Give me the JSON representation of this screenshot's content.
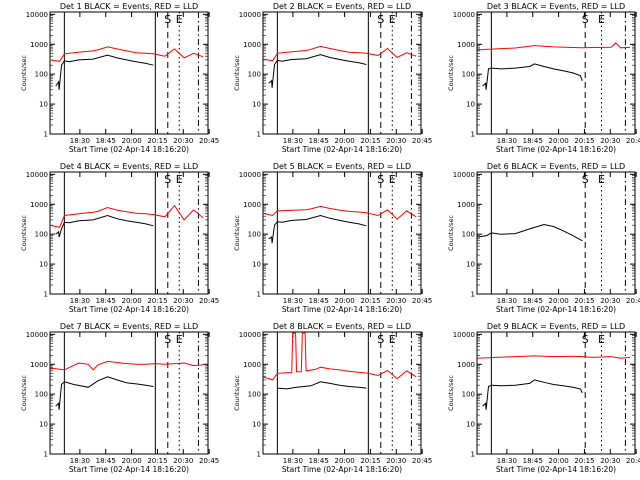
{
  "figure": {
    "time_unit": "minutes after 18:16:20"
  },
  "chart_data": [
    {
      "type": "line",
      "title": "Det 1 BLACK = Events, RED = LLD",
      "xlabel": "Start Time (02-Apr-14 18:16:20)",
      "ylabel": "Counts/sec",
      "yscale": "log",
      "ylim": [
        1,
        12000
      ],
      "xlim": [
        0,
        165
      ],
      "x_ticks": [
        "18:30",
        "18:45",
        "20:00",
        "20:15",
        "20:30",
        "20:45"
      ],
      "y_ticks": [
        "1",
        "10",
        "100",
        "1000",
        "10000"
      ],
      "series": [
        {
          "color": "#000000",
          "x": [
            6,
            9,
            9.5,
            12,
            15,
            20,
            30,
            45,
            60,
            70,
            80,
            90,
            100,
            108
          ],
          "y": [
            40,
            55,
            30,
            200,
            280,
            260,
            300,
            320,
            430,
            350,
            300,
            260,
            230,
            200
          ]
        },
        {
          "color": "#ff0000",
          "x": [
            0,
            10,
            15,
            25,
            35,
            45,
            50,
            60,
            70,
            80,
            90,
            100,
            108,
            120,
            130,
            140,
            150,
            160
          ],
          "y": [
            300,
            270,
            480,
            520,
            560,
            600,
            650,
            820,
            700,
            600,
            520,
            500,
            480,
            400,
            700,
            350,
            500,
            380
          ]
        }
      ],
      "markers": [
        {
          "x": 15,
          "style": "solid",
          "label": ""
        },
        {
          "x": 110,
          "style": "solid",
          "label": ""
        },
        {
          "x": 123,
          "style": "dashed",
          "label": "S"
        },
        {
          "x": 135,
          "style": "dotted",
          "label": "E"
        },
        {
          "x": 155,
          "style": "dashdot",
          "label": ""
        }
      ]
    },
    {
      "type": "line",
      "title": "Det 2 BLACK = Events, RED = LLD",
      "xlabel": "Start Time (02-Apr-14 18:16:20)",
      "ylabel": "Counts/sec",
      "yscale": "log",
      "ylim": [
        1,
        12000
      ],
      "xlim": [
        0,
        165
      ],
      "x_ticks": [
        "18:30",
        "18:45",
        "20:00",
        "20:15",
        "20:30",
        "20:45"
      ],
      "y_ticks": [
        "1",
        "10",
        "100",
        "1000",
        "10000"
      ],
      "series": [
        {
          "color": "#000000",
          "x": [
            6,
            9,
            9.5,
            12,
            15,
            20,
            30,
            45,
            60,
            70,
            80,
            90,
            100,
            108
          ],
          "y": [
            50,
            60,
            35,
            210,
            290,
            270,
            310,
            330,
            450,
            360,
            310,
            270,
            240,
            210
          ]
        },
        {
          "color": "#ff0000",
          "x": [
            0,
            10,
            15,
            25,
            35,
            45,
            50,
            60,
            70,
            80,
            90,
            100,
            108,
            120,
            130,
            140,
            150,
            160
          ],
          "y": [
            320,
            280,
            500,
            540,
            580,
            620,
            680,
            850,
            720,
            620,
            540,
            520,
            500,
            420,
            720,
            360,
            520,
            400
          ]
        }
      ],
      "markers": [
        {
          "x": 15,
          "style": "solid",
          "label": ""
        },
        {
          "x": 110,
          "style": "solid",
          "label": ""
        },
        {
          "x": 123,
          "style": "dashed",
          "label": "S"
        },
        {
          "x": 135,
          "style": "dotted",
          "label": "E"
        },
        {
          "x": 155,
          "style": "dashdot",
          "label": ""
        }
      ]
    },
    {
      "type": "line",
      "title": "Det 3 BLACK = Events, RED = LLD",
      "xlabel": "Start Time (02-Apr-14 18:16:20)",
      "ylabel": "Counts/sec",
      "yscale": "log",
      "ylim": [
        1,
        12000
      ],
      "xlim": [
        0,
        165
      ],
      "x_ticks": [
        "18:30",
        "18:45",
        "20:00",
        "20:15",
        "20:30",
        "20:45"
      ],
      "y_ticks": [
        "1",
        "10",
        "100",
        "1000",
        "10000"
      ],
      "series": [
        {
          "color": "#000000",
          "x": [
            6,
            9,
            9.5,
            12,
            15,
            25,
            40,
            55,
            60,
            70,
            80,
            90,
            100,
            108,
            110
          ],
          "y": [
            40,
            50,
            30,
            150,
            160,
            150,
            160,
            180,
            220,
            180,
            150,
            130,
            110,
            90,
            60
          ]
        },
        {
          "color": "#ff0000",
          "x": [
            0,
            20,
            40,
            60,
            80,
            100,
            110,
            120,
            140,
            145,
            150,
            160
          ],
          "y": [
            650,
            700,
            750,
            900,
            820,
            780,
            760,
            780,
            800,
            1100,
            760,
            800
          ]
        }
      ],
      "markers": [
        {
          "x": 15,
          "style": "solid",
          "label": ""
        },
        {
          "x": 113,
          "style": "dashed",
          "label": "S"
        },
        {
          "x": 130,
          "style": "dotted",
          "label": "E"
        },
        {
          "x": 155,
          "style": "dashdot",
          "label": ""
        }
      ]
    },
    {
      "type": "line",
      "title": "Det 4 BLACK = Events, RED = LLD",
      "xlabel": "Start Time (02-Apr-14 18:16:20)",
      "ylabel": "Counts/sec",
      "yscale": "log",
      "ylim": [
        1,
        12000
      ],
      "xlim": [
        0,
        165
      ],
      "x_ticks": [
        "18:30",
        "18:45",
        "20:00",
        "20:15",
        "20:30",
        "20:45"
      ],
      "y_ticks": [
        "1",
        "10",
        "100",
        "1000",
        "10000"
      ],
      "series": [
        {
          "color": "#000000",
          "x": [
            6,
            9,
            9.5,
            12,
            15,
            20,
            30,
            45,
            60,
            70,
            80,
            90,
            100,
            108
          ],
          "y": [
            100,
            120,
            80,
            150,
            250,
            240,
            280,
            300,
            420,
            330,
            280,
            250,
            220,
            190
          ]
        },
        {
          "color": "#ff0000",
          "x": [
            0,
            10,
            15,
            25,
            35,
            45,
            50,
            60,
            70,
            80,
            90,
            100,
            108,
            120,
            130,
            140,
            150,
            160
          ],
          "y": [
            200,
            170,
            420,
            460,
            500,
            540,
            580,
            780,
            640,
            560,
            500,
            480,
            450,
            380,
            900,
            300,
            650,
            350
          ]
        }
      ],
      "markers": [
        {
          "x": 15,
          "style": "solid",
          "label": ""
        },
        {
          "x": 110,
          "style": "solid",
          "label": ""
        },
        {
          "x": 123,
          "style": "dashed",
          "label": "S"
        },
        {
          "x": 135,
          "style": "dotted",
          "label": "E"
        },
        {
          "x": 155,
          "style": "dashdot",
          "label": ""
        }
      ]
    },
    {
      "type": "line",
      "title": "Det 5 BLACK = Events, RED = LLD",
      "xlabel": "Start Time (02-Apr-14 18:16:20)",
      "ylabel": "Counts/sec",
      "yscale": "log",
      "ylim": [
        1,
        12000
      ],
      "xlim": [
        0,
        165
      ],
      "x_ticks": [
        "18:30",
        "18:45",
        "20:00",
        "20:15",
        "20:30",
        "20:45"
      ],
      "y_ticks": [
        "1",
        "10",
        "100",
        "1000",
        "10000"
      ],
      "series": [
        {
          "color": "#000000",
          "x": [
            6,
            9,
            9.5,
            12,
            15,
            20,
            30,
            45,
            60,
            70,
            80,
            90,
            100,
            108
          ],
          "y": [
            70,
            80,
            50,
            200,
            260,
            250,
            290,
            310,
            420,
            340,
            290,
            250,
            220,
            190
          ]
        },
        {
          "color": "#ff0000",
          "x": [
            0,
            10,
            15,
            25,
            35,
            45,
            50,
            60,
            70,
            80,
            90,
            100,
            108,
            120,
            130,
            140,
            150,
            160
          ],
          "y": [
            500,
            420,
            600,
            620,
            640,
            660,
            700,
            850,
            720,
            640,
            580,
            550,
            520,
            420,
            650,
            320,
            600,
            380
          ]
        }
      ],
      "markers": [
        {
          "x": 15,
          "style": "solid",
          "label": ""
        },
        {
          "x": 110,
          "style": "solid",
          "label": ""
        },
        {
          "x": 123,
          "style": "dashed",
          "label": "S"
        },
        {
          "x": 135,
          "style": "dotted",
          "label": "E"
        },
        {
          "x": 155,
          "style": "dashdot",
          "label": ""
        }
      ]
    },
    {
      "type": "line",
      "title": "Det 6 BLACK = Events, RED = LLD",
      "xlabel": "Start Time (02-Apr-14 18:16:20)",
      "ylabel": "Counts/sec",
      "yscale": "log",
      "ylim": [
        1,
        12000
      ],
      "xlim": [
        0,
        165
      ],
      "x_ticks": [
        "18:30",
        "18:45",
        "20:00",
        "20:15",
        "20:30",
        "20:45"
      ],
      "y_ticks": [
        "1",
        "10",
        "100",
        "1000",
        "10000"
      ],
      "series": [
        {
          "color": "#000000",
          "x": [
            0,
            10,
            15,
            25,
            40,
            55,
            70,
            80,
            90,
            100,
            110
          ],
          "y": [
            80,
            90,
            110,
            100,
            105,
            150,
            210,
            180,
            130,
            90,
            60
          ]
        }
      ],
      "markers": [
        {
          "x": 15,
          "style": "solid",
          "label": ""
        },
        {
          "x": 113,
          "style": "dashed",
          "label": "S"
        },
        {
          "x": 130,
          "style": "dotted",
          "label": "E"
        },
        {
          "x": 155,
          "style": "dashdot",
          "label": ""
        }
      ]
    },
    {
      "type": "line",
      "title": "Det 7 BLACK = Events, RED = LLD",
      "xlabel": "Start Time (02-Apr-14 18:16:20)",
      "ylabel": "Counts/sec",
      "yscale": "log",
      "ylim": [
        1,
        12000
      ],
      "xlim": [
        0,
        165
      ],
      "x_ticks": [
        "18:30",
        "18:45",
        "20:00",
        "20:15",
        "20:30",
        "20:45"
      ],
      "y_ticks": [
        "1",
        "10",
        "100",
        "1000",
        "10000"
      ],
      "series": [
        {
          "color": "#000000",
          "x": [
            6,
            9,
            9.5,
            12,
            15,
            25,
            40,
            50,
            60,
            70,
            80,
            90,
            100,
            108
          ],
          "y": [
            40,
            50,
            30,
            210,
            260,
            210,
            170,
            280,
            380,
            300,
            240,
            220,
            200,
            180
          ]
        },
        {
          "color": "#ff0000",
          "x": [
            0,
            15,
            30,
            40,
            45,
            50,
            60,
            70,
            80,
            90,
            100,
            110,
            120,
            140,
            150,
            160
          ],
          "y": [
            750,
            650,
            1100,
            1000,
            650,
            950,
            1250,
            1150,
            1050,
            1000,
            1000,
            1050,
            1000,
            1100,
            900,
            950
          ]
        }
      ],
      "markers": [
        {
          "x": 15,
          "style": "solid",
          "label": ""
        },
        {
          "x": 110,
          "style": "solid",
          "label": ""
        },
        {
          "x": 123,
          "style": "dashed",
          "label": "S"
        },
        {
          "x": 135,
          "style": "dotted",
          "label": "E"
        },
        {
          "x": 155,
          "style": "dashdot",
          "label": ""
        }
      ]
    },
    {
      "type": "line",
      "title": "Det 8 BLACK = Events, RED = LLD",
      "xlabel": "Start Time (02-Apr-14 18:16:20)",
      "ylabel": "Counts/sec",
      "yscale": "log",
      "ylim": [
        1,
        12000
      ],
      "xlim": [
        0,
        165
      ],
      "x_ticks": [
        "18:30",
        "18:45",
        "20:00",
        "20:15",
        "20:30",
        "20:45"
      ],
      "y_ticks": [
        "1",
        "10",
        "100",
        "1000",
        "10000"
      ],
      "series": [
        {
          "color": "#000000",
          "x": [
            15,
            25,
            35,
            50,
            60,
            70,
            80,
            90,
            100,
            108
          ],
          "y": [
            160,
            150,
            170,
            190,
            260,
            230,
            200,
            180,
            170,
            160
          ]
        },
        {
          "color": "#ff0000",
          "x": [
            0,
            10,
            15,
            25,
            30,
            31,
            34,
            35,
            40,
            41,
            44,
            45,
            50,
            55,
            60,
            70,
            80,
            90,
            100,
            110,
            120,
            130,
            140,
            150,
            160
          ],
          "y": [
            380,
            300,
            500,
            520,
            520,
            11000,
            11000,
            560,
            560,
            11000,
            11000,
            600,
            640,
            680,
            800,
            700,
            650,
            580,
            540,
            500,
            420,
            620,
            330,
            600,
            380
          ]
        }
      ],
      "markers": [
        {
          "x": 15,
          "style": "solid",
          "label": ""
        },
        {
          "x": 110,
          "style": "solid",
          "label": ""
        },
        {
          "x": 123,
          "style": "dashed",
          "label": "S"
        },
        {
          "x": 135,
          "style": "dotted",
          "label": "E"
        },
        {
          "x": 155,
          "style": "dashdot",
          "label": ""
        }
      ]
    },
    {
      "type": "line",
      "title": "Det 9 BLACK = Events, RED = LLD",
      "xlabel": "Start Time (02-Apr-14 18:16:20)",
      "ylabel": "Counts/sec",
      "yscale": "log",
      "ylim": [
        1,
        12000
      ],
      "xlim": [
        0,
        165
      ],
      "x_ticks": [
        "18:30",
        "18:45",
        "20:00",
        "20:15",
        "20:30",
        "20:45"
      ],
      "y_ticks": [
        "1",
        "10",
        "100",
        "1000",
        "10000"
      ],
      "series": [
        {
          "color": "#000000",
          "x": [
            6,
            9,
            9.5,
            12,
            15,
            25,
            40,
            55,
            60,
            70,
            80,
            90,
            100,
            108,
            110
          ],
          "y": [
            40,
            50,
            30,
            180,
            200,
            190,
            200,
            230,
            300,
            250,
            210,
            190,
            170,
            150,
            110
          ]
        },
        {
          "color": "#ff0000",
          "x": [
            0,
            20,
            40,
            60,
            80,
            100,
            110,
            120,
            140,
            150,
            160
          ],
          "y": [
            1600,
            1700,
            1800,
            1900,
            1800,
            1850,
            1800,
            1700,
            1800,
            1600,
            1700
          ]
        }
      ],
      "markers": [
        {
          "x": 15,
          "style": "solid",
          "label": ""
        },
        {
          "x": 113,
          "style": "dashed",
          "label": "S"
        },
        {
          "x": 130,
          "style": "dotted",
          "label": "E"
        },
        {
          "x": 155,
          "style": "dashdot",
          "label": ""
        }
      ]
    }
  ]
}
